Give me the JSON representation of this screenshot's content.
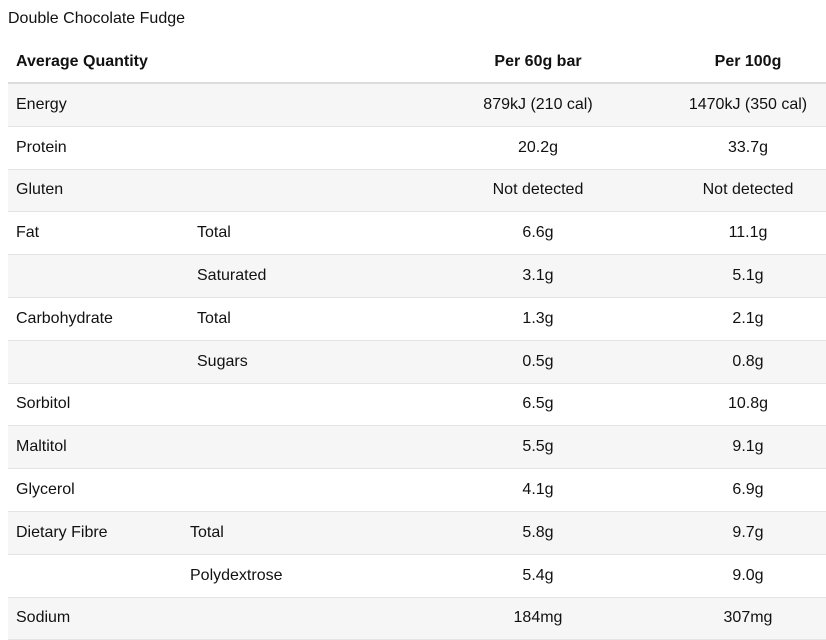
{
  "title": "Double Chocolate Fudge",
  "columns": {
    "name": "Average Quantity",
    "per_bar": "Per 60g bar",
    "per_100g": "Per 100g"
  },
  "rows": [
    {
      "name": "Energy",
      "sub": "",
      "per_bar": "879kJ (210 cal)",
      "per_100g": "1470kJ (350 cal)"
    },
    {
      "name": "Protein",
      "sub": "",
      "per_bar": "20.2g",
      "per_100g": "33.7g"
    },
    {
      "name": "Gluten",
      "sub": "",
      "per_bar": "Not detected",
      "per_100g": "Not detected"
    },
    {
      "name": "Fat",
      "sub": "Total",
      "per_bar": "6.6g",
      "per_100g": "11.1g"
    },
    {
      "name": "",
      "sub": "Saturated",
      "per_bar": "3.1g",
      "per_100g": "5.1g"
    },
    {
      "name": "Carbohydrate",
      "sub": "Total",
      "per_bar": "1.3g",
      "per_100g": "2.1g"
    },
    {
      "name": "",
      "sub": "Sugars",
      "per_bar": "0.5g",
      "per_100g": "0.8g"
    },
    {
      "name": "Sorbitol",
      "sub": "",
      "per_bar": "6.5g",
      "per_100g": "10.8g"
    },
    {
      "name": "Maltitol",
      "sub": "",
      "per_bar": "5.5g",
      "per_100g": "9.1g"
    },
    {
      "name": "Glycerol",
      "sub": "",
      "per_bar": "4.1g",
      "per_100g": "6.9g"
    },
    {
      "name": "Dietary Fibre",
      "sub": "Total",
      "per_bar": "5.8g",
      "per_100g": "9.7g"
    },
    {
      "name": "",
      "sub": "Polydextrose",
      "per_bar": "5.4g",
      "per_100g": "9.0g"
    },
    {
      "name": "Sodium",
      "sub": "",
      "per_bar": "184mg",
      "per_100g": "307mg"
    }
  ]
}
